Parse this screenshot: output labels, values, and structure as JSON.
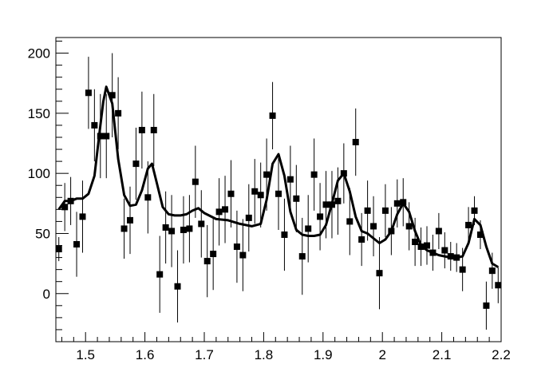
{
  "chart_data": {
    "type": "scatter",
    "title": "",
    "xlabel": "",
    "ylabel": "",
    "xlim": [
      1.45,
      2.2
    ],
    "ylim": [
      -40,
      213
    ],
    "grid": false,
    "legend": "none",
    "colors": {
      "frame": "#000000",
      "marker": "#000000",
      "curve": "#000000",
      "background": "#ffffff"
    },
    "xticks": [
      1.5,
      1.6,
      1.7,
      1.8,
      1.9,
      2.0,
      2.1,
      2.2
    ],
    "xtick_labels": [
      "1.5",
      "1.6",
      "1.7",
      "1.8",
      "1.9",
      "2",
      "2.1",
      "2.2"
    ],
    "yticks": [
      0,
      50,
      100,
      150,
      200
    ],
    "ytick_labels": [
      "0",
      "50",
      "100",
      "150",
      "200"
    ],
    "series": [
      {
        "kind": "points-with-error-bars",
        "x": [
          1.455,
          1.465,
          1.475,
          1.485,
          1.495,
          1.505,
          1.515,
          1.525,
          1.535,
          1.545,
          1.555,
          1.565,
          1.575,
          1.585,
          1.595,
          1.605,
          1.615,
          1.625,
          1.635,
          1.645,
          1.655,
          1.665,
          1.675,
          1.685,
          1.695,
          1.705,
          1.715,
          1.725,
          1.735,
          1.745,
          1.755,
          1.765,
          1.775,
          1.785,
          1.795,
          1.805,
          1.815,
          1.825,
          1.835,
          1.845,
          1.855,
          1.865,
          1.875,
          1.885,
          1.895,
          1.905,
          1.915,
          1.925,
          1.935,
          1.945,
          1.955,
          1.965,
          1.975,
          1.985,
          1.995,
          2.005,
          2.015,
          2.025,
          2.035,
          2.045,
          2.055,
          2.065,
          2.075,
          2.085,
          2.095,
          2.105,
          2.115,
          2.125,
          2.135,
          2.145,
          2.155,
          2.165,
          2.175,
          2.185,
          2.195
        ],
        "y": [
          37,
          72,
          77,
          41,
          64,
          167,
          140,
          131,
          131,
          165,
          150,
          54,
          61,
          108,
          136,
          80,
          136,
          16,
          55,
          52,
          6,
          53,
          54,
          93,
          58,
          27,
          33,
          68,
          70,
          83,
          39,
          32,
          63,
          85,
          82,
          99,
          148,
          83,
          49,
          95,
          79,
          31,
          54,
          99,
          64,
          74,
          74,
          77,
          100,
          60,
          126,
          45,
          69,
          56,
          17,
          69,
          52,
          75,
          76,
          56,
          43,
          39,
          40,
          34,
          52,
          36,
          31,
          30,
          20,
          57,
          69,
          49,
          -10,
          19,
          7
        ],
        "err": [
          10,
          20,
          20,
          27,
          30,
          30,
          30,
          35,
          35,
          35,
          30,
          25,
          28,
          30,
          32,
          30,
          30,
          32,
          30,
          30,
          30,
          28,
          28,
          30,
          28,
          30,
          30,
          28,
          28,
          28,
          30,
          30,
          28,
          27,
          27,
          30,
          28,
          30,
          30,
          28,
          28,
          32,
          28,
          30,
          28,
          28,
          28,
          28,
          25,
          28,
          28,
          22,
          25,
          25,
          30,
          22,
          20,
          20,
          20,
          20,
          20,
          16,
          16,
          15,
          15,
          15,
          12,
          12,
          18,
          15,
          12,
          12,
          20,
          15,
          15
        ]
      },
      {
        "kind": "fit-curve",
        "x": [
          1.455,
          1.465,
          1.475,
          1.485,
          1.495,
          1.505,
          1.515,
          1.525,
          1.53,
          1.535,
          1.545,
          1.555,
          1.565,
          1.575,
          1.585,
          1.595,
          1.605,
          1.612,
          1.62,
          1.63,
          1.64,
          1.65,
          1.66,
          1.67,
          1.68,
          1.69,
          1.7,
          1.72,
          1.74,
          1.76,
          1.78,
          1.795,
          1.805,
          1.815,
          1.825,
          1.835,
          1.845,
          1.855,
          1.865,
          1.875,
          1.885,
          1.895,
          1.905,
          1.915,
          1.925,
          1.935,
          1.945,
          1.955,
          1.965,
          1.975,
          1.985,
          1.995,
          2.005,
          2.015,
          2.025,
          2.035,
          2.045,
          2.055,
          2.065,
          2.075,
          2.085,
          2.095,
          2.105,
          2.115,
          2.125,
          2.135,
          2.145,
          2.155,
          2.165,
          2.175,
          2.185,
          2.195
        ],
        "y": [
          70,
          77,
          77,
          79,
          79,
          83,
          98,
          140,
          160,
          172,
          158,
          112,
          82,
          73,
          74,
          86,
          104,
          108,
          92,
          72,
          66,
          65,
          65,
          66,
          69,
          71,
          67,
          62,
          61,
          58,
          56,
          58,
          78,
          108,
          116,
          98,
          68,
          53,
          49,
          48,
          48,
          49,
          57,
          75,
          94,
          100,
          85,
          64,
          52,
          50,
          46,
          42,
          45,
          52,
          66,
          75,
          68,
          52,
          40,
          36,
          34,
          32,
          31,
          30,
          30,
          31,
          42,
          62,
          57,
          39,
          25,
          22
        ]
      }
    ]
  }
}
